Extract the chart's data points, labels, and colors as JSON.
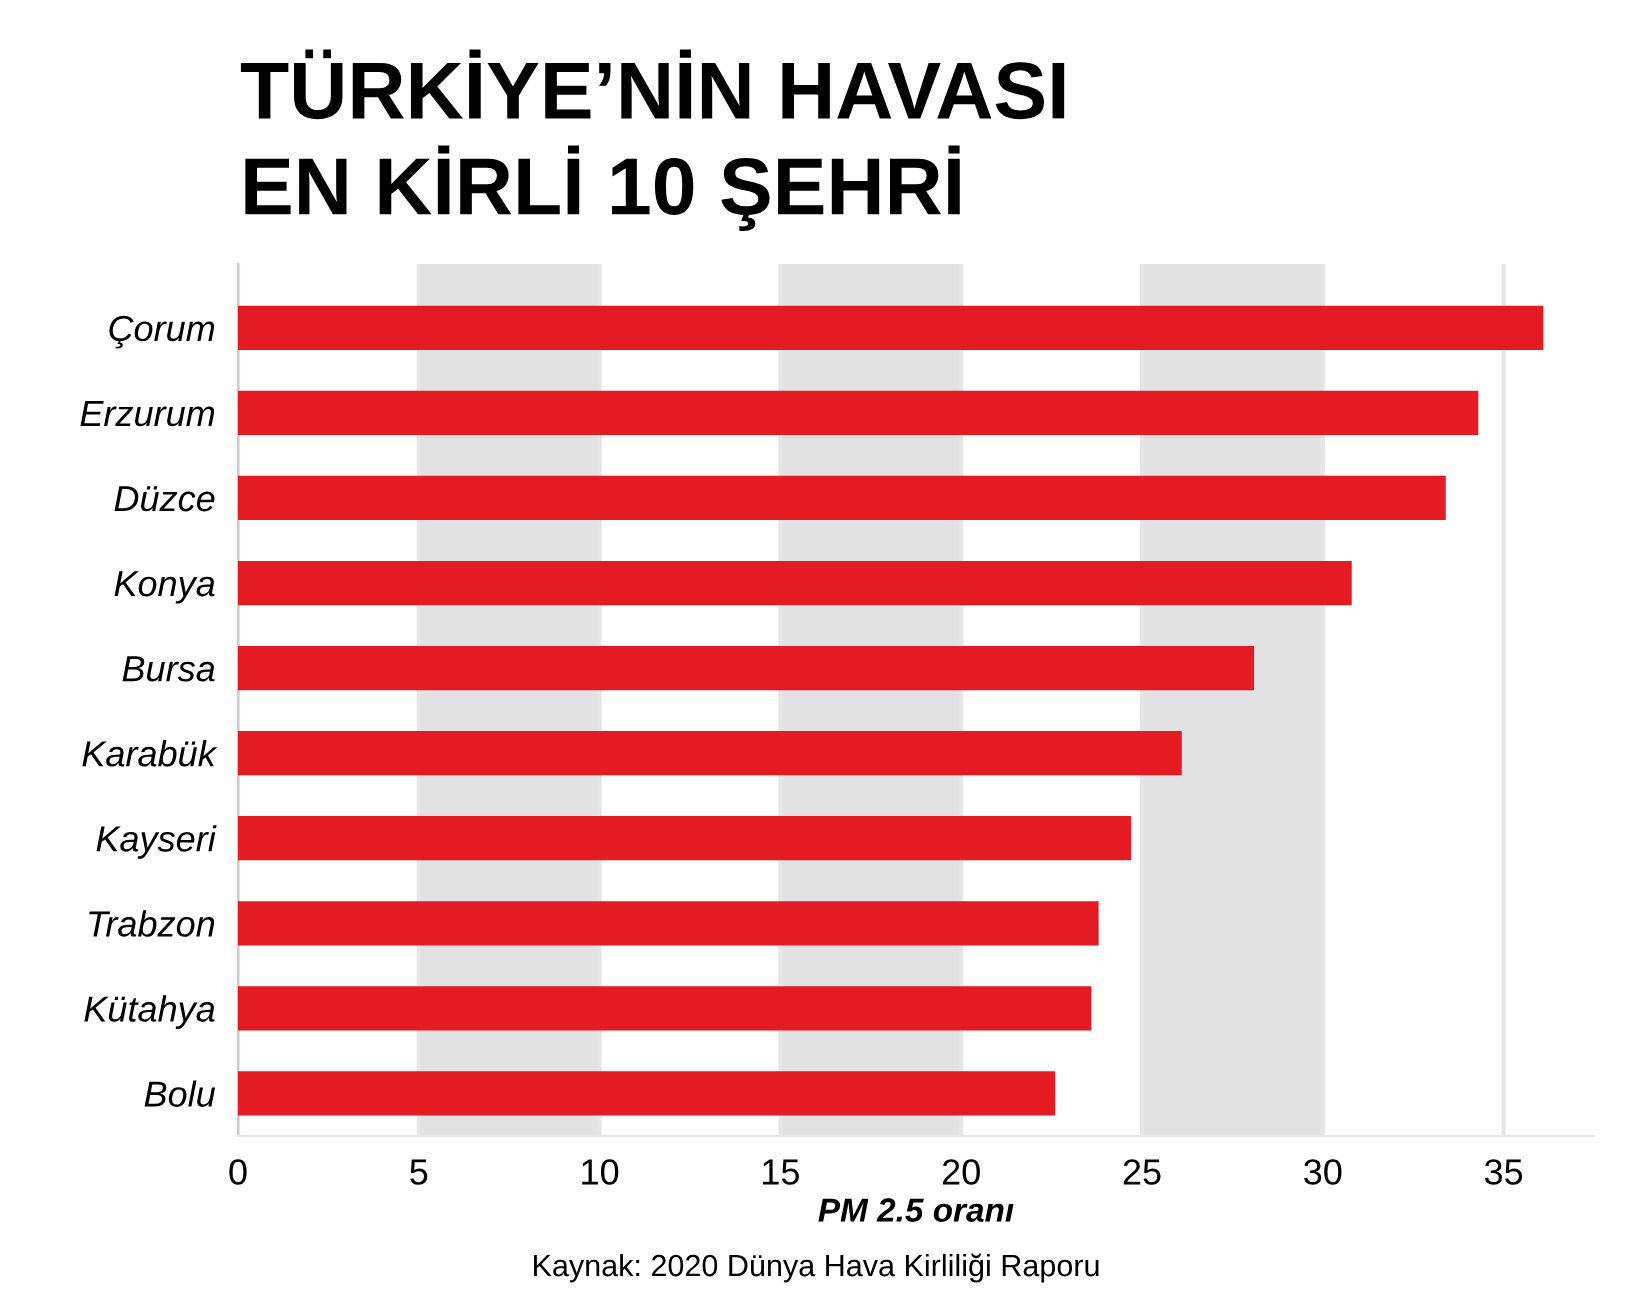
{
  "chart_data": {
    "type": "bar",
    "orientation": "horizontal",
    "title": "TÜRKİYE’NİN HAVASI\nEN KİRLİ 10 ŞEHRİ",
    "xlabel": "PM 2.5 oranı",
    "categories": [
      "Çorum",
      "Erzurum",
      "Düzce",
      "Konya",
      "Bursa",
      "Karabük",
      "Kayseri",
      "Trabzon",
      "Kütahya",
      "Bolu"
    ],
    "values": [
      36.1,
      34.3,
      33.4,
      30.8,
      28.1,
      26.1,
      24.7,
      23.8,
      23.6,
      22.6
    ],
    "color": "#e41b23",
    "xlim": [
      0,
      37.5
    ],
    "xticks": [
      0,
      5,
      10,
      15,
      20,
      25,
      30,
      35
    ],
    "grid": "x",
    "bands": [
      {
        "axis": "x",
        "from": 5,
        "to": 10,
        "color": "#e2e1e3"
      },
      {
        "axis": "x",
        "from": 15,
        "to": 20,
        "color": "#e2e1e3"
      },
      {
        "axis": "x",
        "from": 25,
        "to": 30,
        "color": "#e2e1e3"
      }
    ],
    "annotations": [
      "Kaynak: 2020 Dünya Hava Kirliliği Raporu"
    ]
  }
}
